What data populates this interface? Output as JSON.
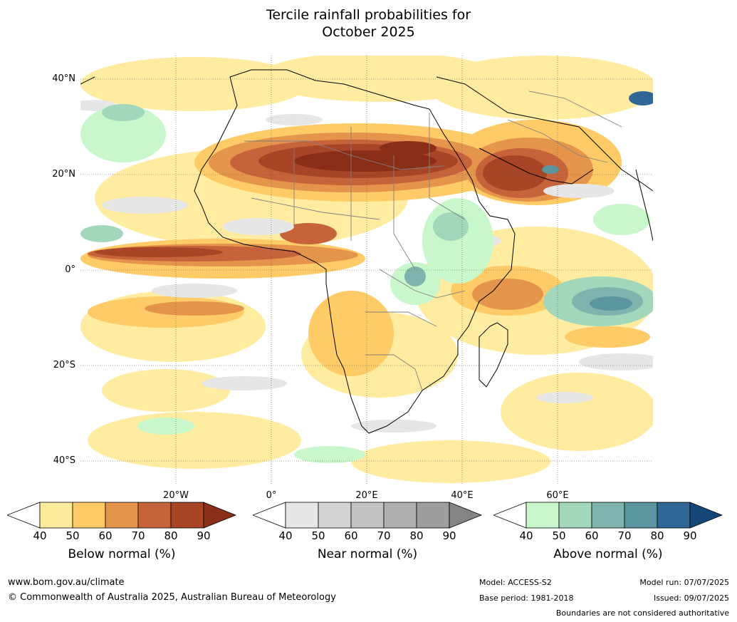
{
  "title_line1": "Tercile rainfall probabilities for",
  "title_line2": "October 2025",
  "lat_labels": [
    "40°N",
    "20°N",
    "0°",
    "20°S",
    "40°S"
  ],
  "lon_labels": [
    "20°W",
    "0°",
    "20°E",
    "40°E",
    "60°E"
  ],
  "colorbars": [
    {
      "label": "Below normal (%)",
      "ticks": [
        "40",
        "50",
        "60",
        "70",
        "80",
        "90"
      ],
      "colors": [
        "#ffeb9c",
        "#fecb66",
        "#e4954b",
        "#c7633a",
        "#a84527",
        "#8b2e18"
      ]
    },
    {
      "label": "Near normal (%)",
      "ticks": [
        "40",
        "50",
        "60",
        "70",
        "80",
        "90"
      ],
      "colors": [
        "#e6e6e6",
        "#d3d3d3",
        "#c2c2c2",
        "#b0b0b0",
        "#9e9e9e",
        "#848484"
      ]
    },
    {
      "label": "Above normal (%)",
      "ticks": [
        "40",
        "50",
        "60",
        "70",
        "80",
        "90"
      ],
      "colors": [
        "#c8f7cc",
        "#a2d7bc",
        "#7fb4ae",
        "#5b96a0",
        "#316796",
        "#144677"
      ]
    }
  ],
  "footer": {
    "url": "www.bom.gov.au/climate",
    "copyright": "© Commonwealth of Australia 2025, Australian Bureau of Meteorology",
    "model": "Model: ACCESS-S2",
    "base_period": "Base period: 1981-2018",
    "model_run": "Model run: 07/07/2025",
    "issued": "Issued: 09/07/2025",
    "boundaries": "Boundaries are not considered authoritative"
  }
}
